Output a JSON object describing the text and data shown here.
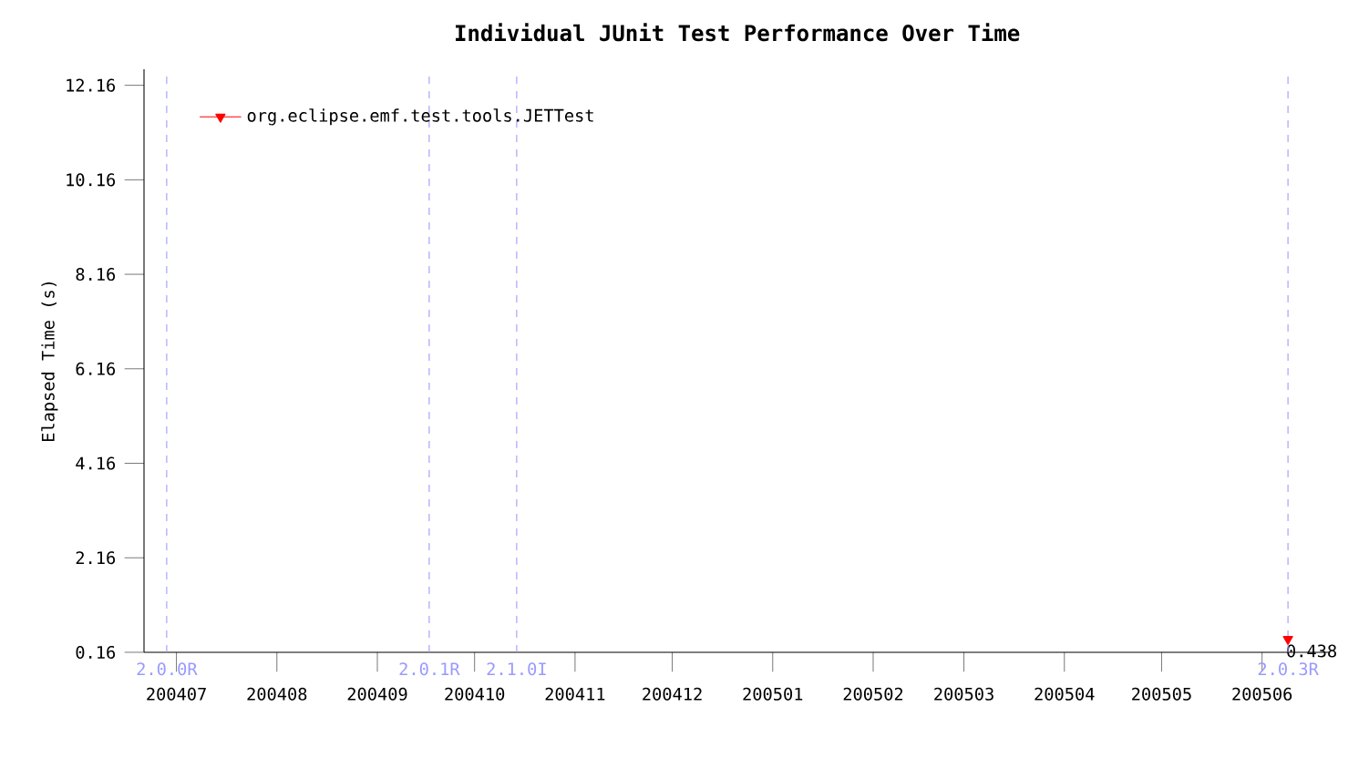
{
  "chart_data": {
    "type": "line",
    "title": "Individual JUnit Test Performance Over Time",
    "ylabel": "Elapsed Time (s)",
    "xlim": [
      "2004-06-21",
      "2005-06-22"
    ],
    "xticks": [
      {
        "value": "2004-07-01",
        "label": "200407"
      },
      {
        "value": "2004-08-01",
        "label": "200408"
      },
      {
        "value": "2004-09-01",
        "label": "200409"
      },
      {
        "value": "2004-10-01",
        "label": "200410"
      },
      {
        "value": "2004-11-01",
        "label": "200411"
      },
      {
        "value": "2004-12-01",
        "label": "200412"
      },
      {
        "value": "2005-01-01",
        "label": "200501"
      },
      {
        "value": "2005-02-01",
        "label": "200502"
      },
      {
        "value": "2005-03-01",
        "label": "200503"
      },
      {
        "value": "2005-04-01",
        "label": "200504"
      },
      {
        "value": "2005-05-01",
        "label": "200505"
      },
      {
        "value": "2005-06-01",
        "label": "200506"
      }
    ],
    "ylim": [
      0.16,
      12.5
    ],
    "yticks": [
      0.16,
      2.16,
      4.16,
      6.16,
      8.16,
      10.16,
      12.16
    ],
    "series": [
      {
        "name": "org.eclipse.emf.test.tools.JETTest",
        "color": "#ff0000",
        "x": [
          "2005-06-09"
        ],
        "values": [
          0.438
        ],
        "value_labels": [
          "0.438"
        ]
      }
    ],
    "marker": "triangle",
    "line_style": "solid",
    "legend": "top left",
    "grid": false,
    "ref_lines": [
      {
        "axis": "x",
        "value": "2004-06-28",
        "label": "2.0.0R",
        "color": "#9999ff",
        "line_style": "dashed"
      },
      {
        "axis": "x",
        "value": "2004-09-17",
        "label": "2.0.1R",
        "color": "#9999ff",
        "line_style": "dashed"
      },
      {
        "axis": "x",
        "value": "2004-10-14",
        "label": "2.1.0I",
        "color": "#9999ff",
        "line_style": "dashed"
      },
      {
        "axis": "x",
        "value": "2005-06-09",
        "label": "2.0.3R",
        "color": "#9999ff",
        "line_style": "dashed"
      }
    ]
  }
}
